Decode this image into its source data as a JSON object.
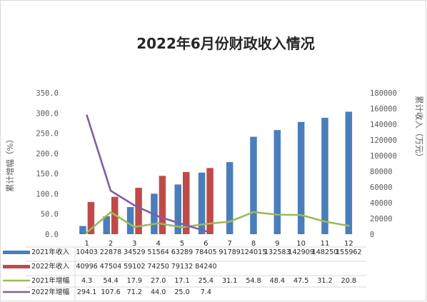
{
  "chart_data": {
    "type": "bar",
    "title": "2022年6月份财政收入情况",
    "categories": [
      "1",
      "2",
      "3",
      "4",
      "5",
      "6",
      "7",
      "8",
      "9",
      "10",
      "11",
      "12"
    ],
    "y_left": {
      "label": "累计增幅（%）",
      "ylim": [
        0,
        350
      ],
      "ticks": [
        "0.0",
        "50.0",
        "100.0",
        "150.0",
        "200.0",
        "250.0",
        "300.0",
        "350.0"
      ]
    },
    "y_right": {
      "label": "累计收入（万元）",
      "ylim": [
        0,
        180000
      ],
      "ticks": [
        "0",
        "20000",
        "40000",
        "60000",
        "80000",
        "100000",
        "120000",
        "140000",
        "160000",
        "180000"
      ]
    },
    "grid": false,
    "legend": "bottom-table",
    "series": [
      {
        "name": "2021年收入",
        "type": "bar",
        "axis": "right",
        "color": "#4a7ebb",
        "values": [
          10403,
          22878,
          34529,
          51564,
          63289,
          78405,
          91789,
          124015,
          132583,
          142909,
          148250,
          155962
        ],
        "labels": [
          "10403",
          "22878",
          "34529",
          "51564",
          "63289",
          "78405",
          "91789",
          "124015",
          "132583",
          "142909",
          "148250",
          "155962"
        ]
      },
      {
        "name": "2022年收入",
        "type": "bar",
        "axis": "right",
        "color": "#be4b48",
        "values": [
          40996,
          47504,
          59102,
          74250,
          79132,
          84240,
          null,
          null,
          null,
          null,
          null,
          null
        ],
        "labels": [
          "40996",
          "47504",
          "59102",
          "74250",
          "79132",
          "84240",
          "",
          "",
          "",
          "",
          "",
          ""
        ]
      },
      {
        "name": "2021年增幅",
        "type": "line",
        "axis": "left",
        "color": "#9bbb59",
        "values": [
          4.3,
          54.4,
          17.9,
          27.0,
          17.1,
          25.4,
          31.1,
          54.8,
          48.4,
          47.5,
          31.2,
          20.8
        ],
        "labels": [
          "4.3",
          "54.4",
          "17.9",
          "27.0",
          "17.1",
          "25.4",
          "31.1",
          "54.8",
          "48.4",
          "47.5",
          "31.2",
          "20.8"
        ]
      },
      {
        "name": "2022年增幅",
        "type": "line",
        "axis": "left",
        "color": "#7f5fa6",
        "values": [
          294.1,
          107.6,
          71.2,
          44.0,
          25.0,
          7.4,
          null,
          null,
          null,
          null,
          null,
          null
        ],
        "labels": [
          "294.1",
          "107.6",
          "71.2",
          "44.0",
          "25.0",
          "7.4",
          "",
          "",
          "",
          "",
          "",
          ""
        ]
      }
    ]
  }
}
